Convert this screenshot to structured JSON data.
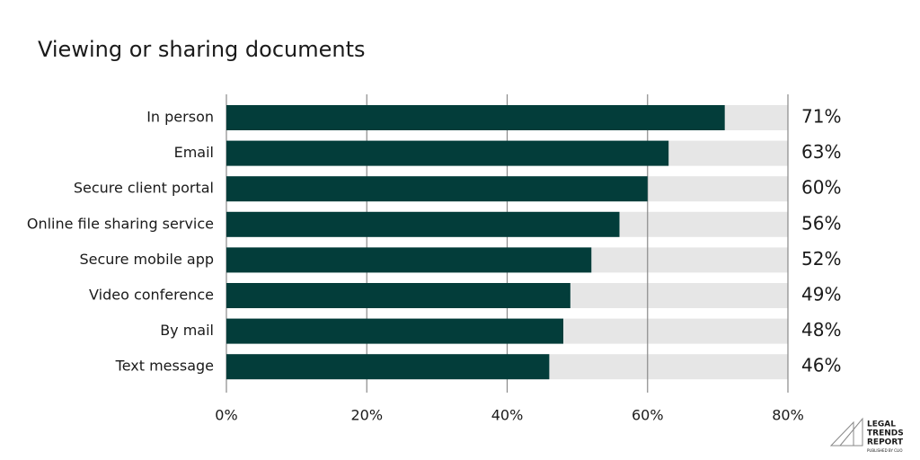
{
  "chart_data": {
    "type": "bar",
    "orientation": "horizontal",
    "title": "Viewing or sharing documents",
    "categories": [
      "In person",
      "Email",
      "Secure client portal",
      "Online file sharing service",
      "Secure mobile app",
      "Video conference",
      "By mail",
      "Text message"
    ],
    "values": [
      71,
      63,
      60,
      56,
      52,
      49,
      48,
      46
    ],
    "value_labels": [
      "71%",
      "63%",
      "60%",
      "56%",
      "52%",
      "49%",
      "48%",
      "46%"
    ],
    "color": "#033d3a",
    "track_color": "#e6e6e6",
    "xlim": [
      0,
      80
    ],
    "xticks": [
      {
        "value": 0,
        "label": "0%"
      },
      {
        "value": 20,
        "label": "20%"
      },
      {
        "value": 40,
        "label": "40%"
      },
      {
        "value": 60,
        "label": "60%"
      },
      {
        "value": 80,
        "label": "80%"
      }
    ],
    "grid": true
  },
  "logo": {
    "lines": [
      "LEGAL",
      "TRENDS",
      "REPORT"
    ],
    "subtitle": "PUBLISHED BY CLIO"
  }
}
